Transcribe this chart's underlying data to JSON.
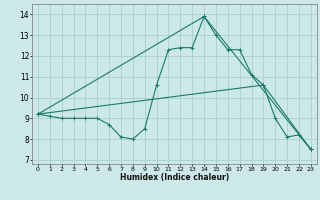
{
  "xlabel": "Humidex (Indice chaleur)",
  "bg_color": "#cce8e8",
  "grid_color": "#aacfcf",
  "line_color": "#1a7a6a",
  "xlim": [
    -0.5,
    23.5
  ],
  "ylim": [
    6.8,
    14.5
  ],
  "yticks": [
    7,
    8,
    9,
    10,
    11,
    12,
    13,
    14
  ],
  "xticks": [
    0,
    1,
    2,
    3,
    4,
    5,
    6,
    7,
    8,
    9,
    10,
    11,
    12,
    13,
    14,
    15,
    16,
    17,
    18,
    19,
    20,
    21,
    22,
    23
  ],
  "series1_x": [
    0,
    1,
    2,
    3,
    4,
    5,
    6,
    7,
    8,
    9,
    10,
    11,
    12,
    13,
    14,
    15,
    16,
    17,
    18,
    19,
    20,
    21,
    22,
    23
  ],
  "series1_y": [
    9.2,
    9.1,
    9.0,
    9.0,
    9.0,
    9.0,
    8.7,
    8.1,
    8.0,
    8.5,
    10.6,
    12.3,
    12.4,
    12.4,
    13.9,
    13.0,
    12.3,
    12.3,
    11.1,
    10.6,
    9.0,
    8.1,
    8.2,
    7.5
  ],
  "series2_x": [
    0,
    14,
    23
  ],
  "series2_y": [
    9.2,
    13.9,
    7.5
  ],
  "series3_x": [
    0,
    19,
    23
  ],
  "series3_y": [
    9.2,
    10.6,
    7.5
  ]
}
